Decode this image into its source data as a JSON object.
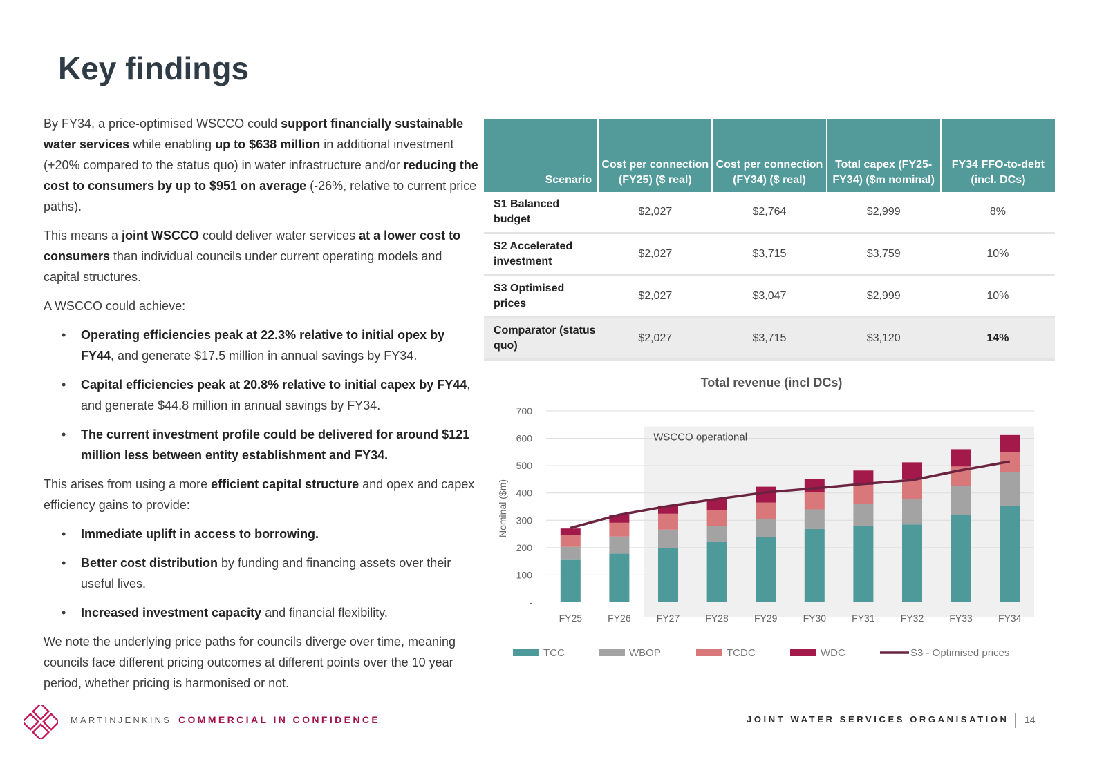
{
  "title": "Key findings",
  "intro": {
    "t1": "By FY34, a price-optimised WSCCO could ",
    "b1": "support financially sustainable water services",
    "t2": " while enabling ",
    "b2": "up to $638 million",
    "t3": " in additional investment (+20% compared to the status quo) in water infrastructure and/or ",
    "b3": "reducing the cost to consumers by up to $951 on average",
    "t4": " (-26%, relative to current price paths)."
  },
  "means": {
    "t1": "This means a ",
    "b1": "joint WSCCO",
    "t2": " could deliver water services ",
    "b2": "at a lower cost to consumers",
    "t3": " than individual councils under current operating models and capital structures."
  },
  "achieve_label": "A WSCCO could achieve:",
  "achieve_bullets": [
    {
      "bold": "Operating efficiencies peak at 22.3% relative to initial opex by FY44",
      "text": ", and generate $17.5 million in annual savings by FY34."
    },
    {
      "bold": "Capital efficiencies peak at 20.8% relative to initial capex by FY44",
      "text": ", and generate $44.8 million in annual savings by FY34."
    },
    {
      "bold": "The current investment profile could be delivered for around $121 million less between entity establishment and FY34.",
      "text": ""
    }
  ],
  "arises": {
    "t1": "This arises from using a more ",
    "b1": "efficient capital structure",
    "t2": " and opex and capex efficiency gains to provide:"
  },
  "provide_bullets": [
    {
      "bold": "Immediate uplift in access to borrowing.",
      "text": ""
    },
    {
      "bold": "Better cost distribution",
      "text": " by funding and financing assets over their useful lives."
    },
    {
      "bold": "Increased investment capacity",
      "text": " and financial flexibility."
    }
  ],
  "note": "We note the underlying price paths for councils diverge over time, meaning councils face different pricing outcomes at different points over the 10 year period, whether pricing is harmonised or not.",
  "bullet_char": "•",
  "table": {
    "headers": [
      "Scenario",
      "Cost per connection (FY25) ($ real)",
      "Cost per connection (FY34) ($ real)",
      "Total capex (FY25-FY34) ($m nominal)",
      "FY34 FFO-to-debt (incl. DCs)"
    ],
    "rows": [
      [
        "S1 Balanced budget",
        "$2,027",
        "$2,764",
        "$2,999",
        "8%"
      ],
      [
        "S2 Accelerated investment",
        "$2,027",
        "$3,715",
        "$3,759",
        "10%"
      ],
      [
        "S3 Optimised prices",
        "$2,027",
        "$3,047",
        "$2,999",
        "10%"
      ],
      [
        "Comparator (status quo)",
        "$2,027",
        "$3,715",
        "$3,120",
        "14%"
      ]
    ]
  },
  "chart_data": {
    "type": "bar",
    "title": "Total revenue (incl DCs)",
    "ylabel": "Nominal ($m)",
    "xlabel": "",
    "ylim": [
      0,
      700
    ],
    "yticks": [
      "-",
      "100",
      "200",
      "300",
      "400",
      "500",
      "600",
      "700"
    ],
    "stacked": true,
    "categories": [
      "FY25",
      "FY26",
      "FY27",
      "FY28",
      "FY29",
      "FY30",
      "FY31",
      "FY32",
      "FY33",
      "FY34"
    ],
    "series": [
      {
        "name": "TCC",
        "color": "#4e9a9a",
        "values": [
          155,
          178,
          198,
          222,
          238,
          268,
          278,
          285,
          320,
          352
        ]
      },
      {
        "name": "WBOP",
        "color": "#a3a3a3",
        "values": [
          48,
          63,
          68,
          58,
          67,
          72,
          82,
          93,
          105,
          125
        ]
      },
      {
        "name": "TCDC",
        "color": "#d8787b",
        "values": [
          42,
          50,
          58,
          58,
          60,
          62,
          70,
          72,
          72,
          72
        ]
      },
      {
        "name": "WDC",
        "color": "#a3194a",
        "values": [
          25,
          28,
          30,
          40,
          58,
          50,
          52,
          62,
          63,
          63
        ]
      }
    ],
    "line": {
      "name": "S3 - Optimised prices",
      "color": "#6b2340",
      "values": [
        272,
        320,
        352,
        378,
        402,
        417,
        433,
        447,
        483,
        515
      ]
    },
    "shaded_region_label": "WSCCO operational",
    "shaded_from": "FY27",
    "legend_position": "bottom",
    "grid": true
  },
  "footer": {
    "brand": "MARTINJENKINS",
    "confidential": "COMMERCIAL IN CONFIDENCE",
    "right": "JOINT WATER SERVICES ORGANISATION",
    "page": "14"
  }
}
